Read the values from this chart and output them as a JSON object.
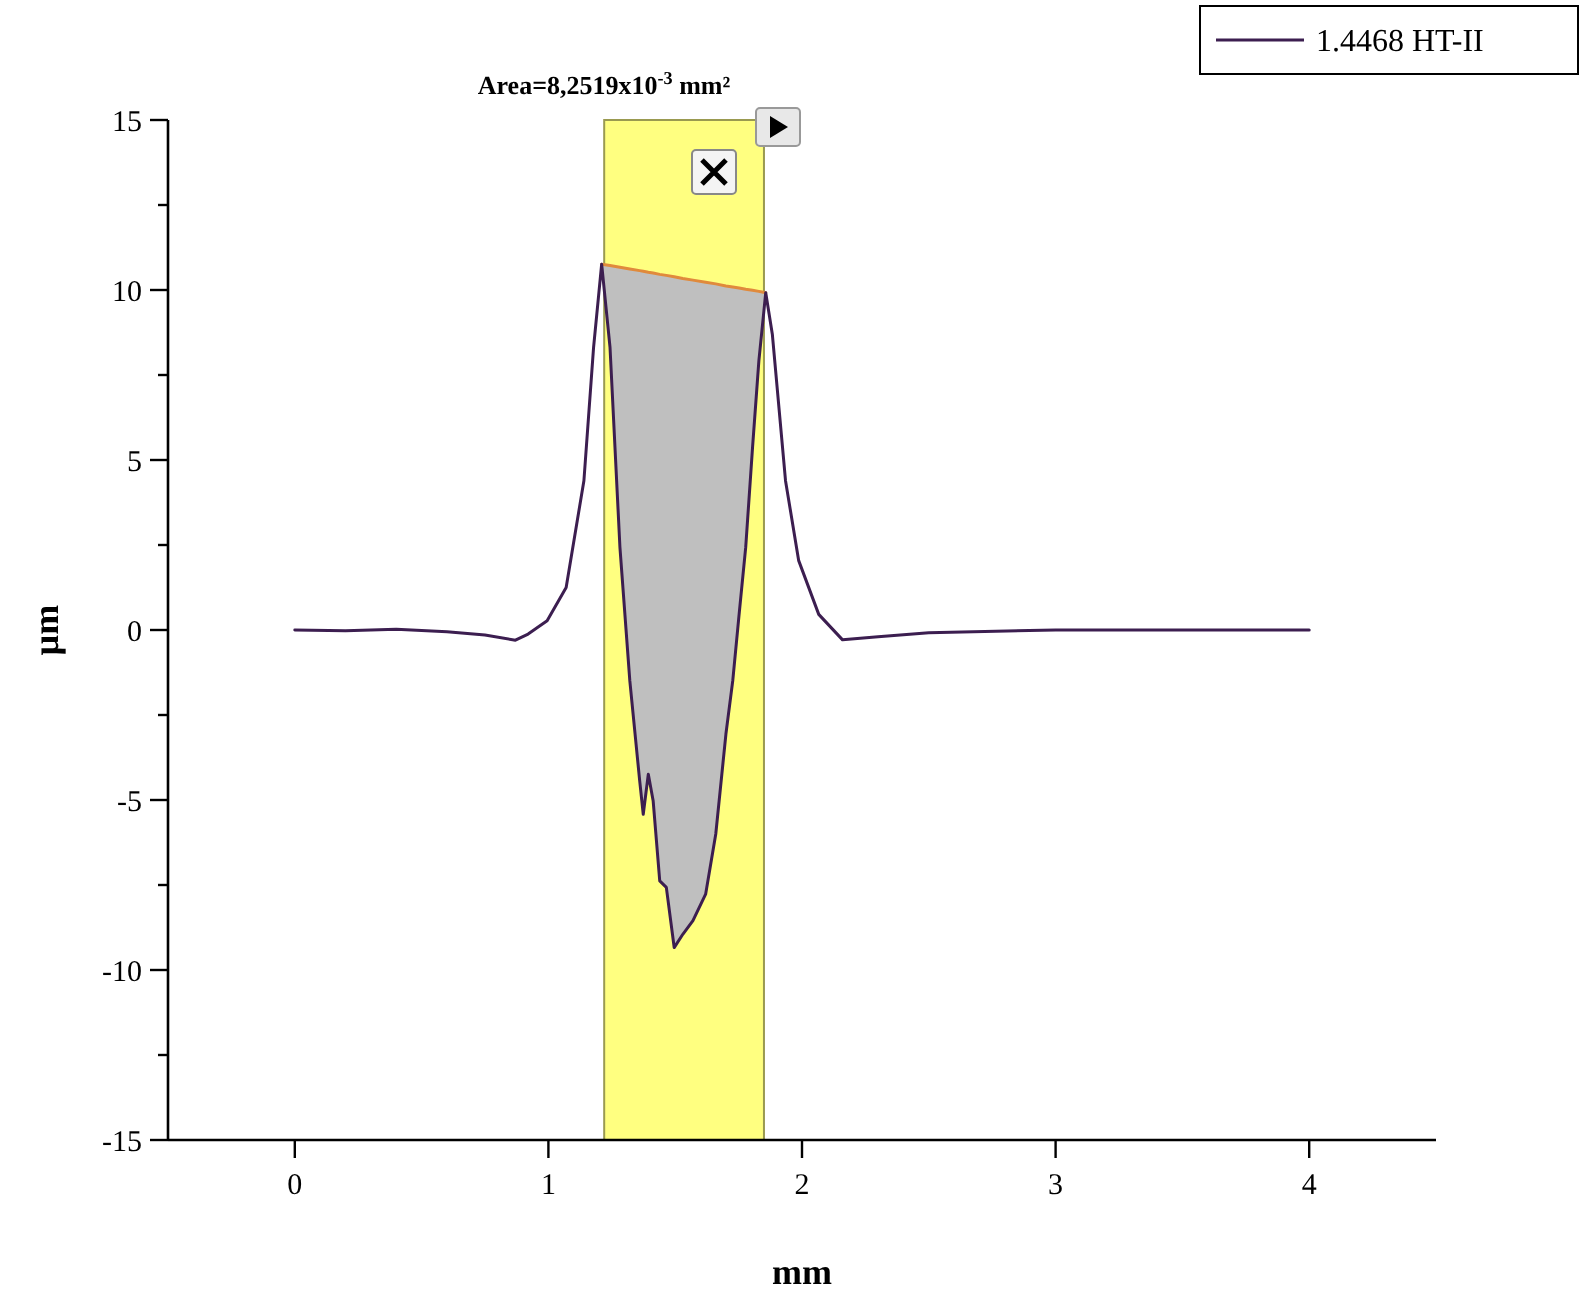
{
  "chart_data": {
    "type": "line",
    "title": "Area=8,2519x10$^{-3}$ mm²",
    "xlabel": "mm",
    "ylabel": "µm",
    "xlim": [
      -0.5,
      4.5
    ],
    "xticks": [
      0,
      1,
      2,
      3,
      4
    ],
    "ylim": [
      -15,
      15
    ],
    "yticks": [
      -15,
      {
        "value": -12.5,
        "label": null
      },
      -10,
      {
        "value": -7.5,
        "label": null
      },
      -5,
      {
        "value": -2.5,
        "label": null
      },
      0,
      {
        "value": 2.5,
        "label": null
      },
      5,
      {
        "value": 7.5,
        "label": null
      },
      10,
      {
        "value": 12.5,
        "label": null
      },
      15
    ],
    "grid": false,
    "legend": "top right",
    "marker": "none",
    "line_style": "solid",
    "bands": [
      {
        "axis": "x",
        "from": 1.22,
        "to": 1.85,
        "color": "#ffff80"
      }
    ],
    "series": [
      {
        "color": "#e08a3c",
        "x": [
          1.21,
          1.243,
          1.282,
          1.321,
          1.36,
          1.374,
          1.394,
          1.413,
          1.439,
          1.465,
          1.496,
          1.53,
          1.57,
          1.62,
          1.66,
          1.7,
          1.727,
          1.752,
          1.778,
          1.805,
          1.83,
          1.857
        ],
        "values": [
          10.76,
          10.72,
          10.67,
          10.62,
          10.57,
          10.55,
          10.52,
          10.5,
          10.46,
          10.43,
          10.39,
          10.34,
          10.29,
          10.23,
          10.18,
          10.12,
          10.09,
          10.06,
          10.02,
          9.99,
          9.96,
          9.92
        ],
        "lower": [
          10.76,
          8.31,
          2.44,
          -1.49,
          -4.44,
          -5.42,
          -4.24,
          -5.02,
          -7.38,
          -7.57,
          -9.34,
          -8.95,
          -8.55,
          -7.77,
          -6.0,
          -3.06,
          -1.49,
          0.46,
          2.43,
          5.37,
          7.92,
          9.92
        ],
        "upper": [
          10.76,
          10.72,
          10.67,
          10.62,
          10.57,
          10.55,
          10.52,
          10.5,
          10.46,
          10.43,
          10.39,
          10.34,
          10.29,
          10.23,
          10.18,
          10.12,
          10.09,
          10.06,
          10.02,
          9.99,
          9.96,
          9.92
        ]
      },
      {
        "type": "line",
        "name": "1.4468 HT-II",
        "color": "#3c1e50",
        "x": [
          0,
          0.2,
          0.4,
          0.6,
          0.75,
          0.87,
          0.92,
          0.995,
          1.07,
          1.14,
          1.178,
          1.21,
          1.243,
          1.282,
          1.321,
          1.36,
          1.374,
          1.394,
          1.413,
          1.439,
          1.465,
          1.496,
          1.53,
          1.57,
          1.62,
          1.66,
          1.7,
          1.727,
          1.752,
          1.778,
          1.805,
          1.83,
          1.857,
          1.883,
          1.935,
          1.987,
          2.066,
          2.16,
          2.3,
          2.5,
          3,
          3.5,
          4
        ],
        "values": [
          0,
          -0.02,
          0.02,
          -0.05,
          -0.15,
          -0.3,
          -0.12,
          0.27,
          1.25,
          4.39,
          8.3,
          10.76,
          8.31,
          2.44,
          -1.49,
          -4.44,
          -5.42,
          -4.24,
          -5.02,
          -7.38,
          -7.57,
          -9.34,
          -8.95,
          -8.55,
          -7.77,
          -6.0,
          -3.06,
          -1.49,
          0.46,
          2.43,
          5.37,
          7.92,
          9.92,
          8.7,
          4.39,
          2.04,
          0.46,
          -0.29,
          -0.2,
          -0.08,
          0,
          0,
          0
        ]
      }
    ]
  }
}
